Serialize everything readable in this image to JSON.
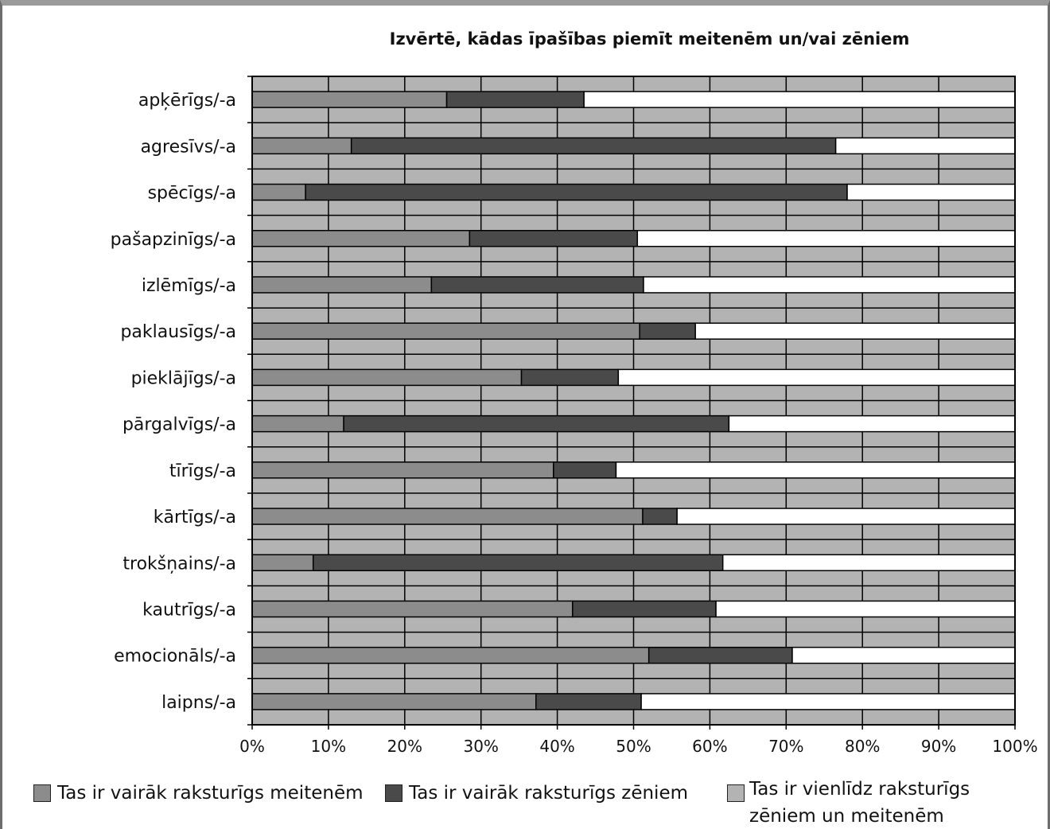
{
  "chart_data": {
    "type": "bar",
    "stacked": true,
    "orientation": "horizontal",
    "title": "Izvērtē, kādas īpašības piemīt meitenēm un/vai zēniem",
    "categories": [
      "apķērīgs/-a",
      "agresīvs/-a",
      "spēcīgs/-a",
      "pašapzinīgs/-a",
      "izlēmīgs/-a",
      "paklausīgs/-a",
      "pieklājīgs/-a",
      "pārgalvīgs/-a",
      "tīrīgs/-a",
      "kārtīgs/-a",
      "trokšņains/-a",
      "kautrīgs/-a",
      "emocionāls/-a",
      "laipns/-a"
    ],
    "series": [
      {
        "name": "Tas ir vairāk raksturīgs meitenēm",
        "color": "#8c8c8c",
        "values": [
          25.5,
          13,
          7,
          28.5,
          23.5,
          50.8,
          35.3,
          12,
          39.5,
          51.2,
          8,
          42,
          52,
          37.2
        ]
      },
      {
        "name": "Tas ir vairāk raksturīgs zēniem",
        "color": "#4a4a4a",
        "values": [
          18,
          63.5,
          71,
          22,
          27.8,
          7.3,
          12.7,
          50.5,
          8.2,
          4.5,
          53.7,
          18.8,
          18.8,
          13.8
        ]
      },
      {
        "name": "Tas ir vienlīdz raksturīgs zēniem un meitenēm",
        "color": "#ffffff",
        "values": [
          56.5,
          23.5,
          22,
          49.5,
          48.7,
          41.9,
          52,
          37.5,
          52.3,
          44.3,
          38.3,
          39.2,
          29.2,
          49
        ]
      }
    ],
    "xticks": [
      "0%",
      "10%",
      "20%",
      "30%",
      "40%",
      "50%",
      "60%",
      "70%",
      "80%",
      "90%",
      "100%"
    ],
    "xlim": [
      0,
      100
    ],
    "grid": true,
    "plot_background": "#b3b3b3",
    "legend_position": "bottom",
    "legend_swatch_third": "#b3b3b3"
  },
  "legend": {
    "item1": "Tas ir vairāk raksturīgs meitenēm",
    "item2": "Tas ir vairāk raksturīgs zēniem",
    "item3_line1": "Tas ir vienlīdz raksturīgs",
    "item3_line2": "zēniem un meitenēm"
  }
}
